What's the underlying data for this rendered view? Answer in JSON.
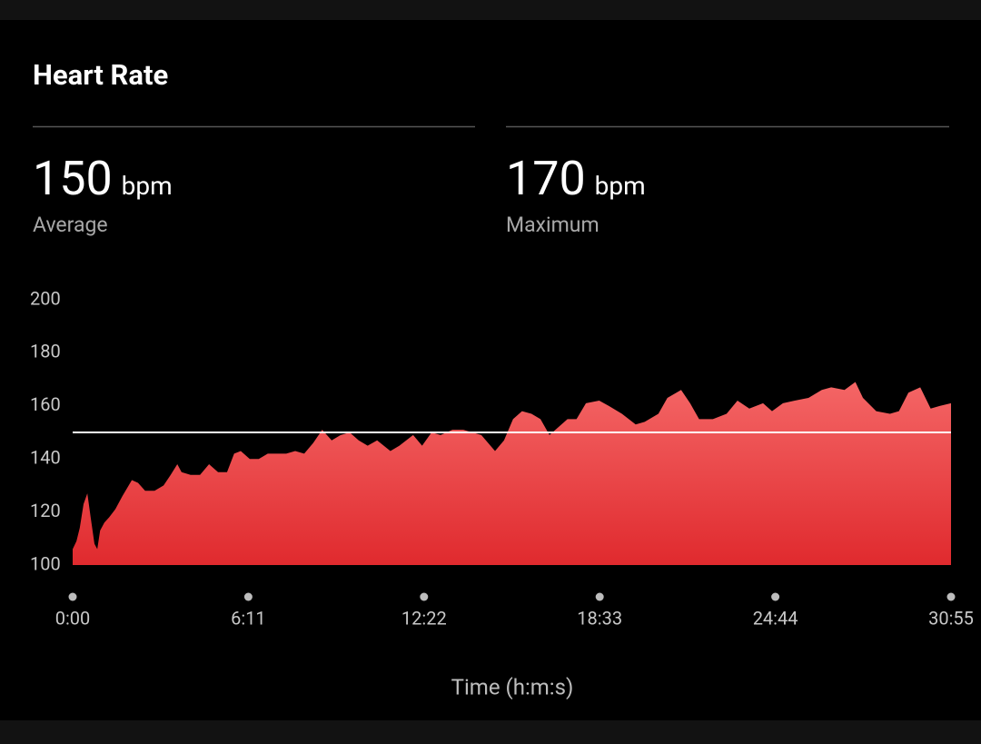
{
  "title": "Heart Rate",
  "stats": [
    {
      "value": 150,
      "unit": "bpm",
      "label": "Average"
    },
    {
      "value": 170,
      "unit": "bpm",
      "label": "Maximum"
    }
  ],
  "chart_data": {
    "type": "area",
    "x_label": "Time (h:m:s)",
    "gradient": [
      "#f46666",
      "#e02a2e"
    ],
    "reference_color": "#ffffff",
    "xlim": [
      0,
      1855
    ],
    "xticks": [
      {
        "value": 0,
        "label": "0:00"
      },
      {
        "value": 371,
        "label": "6:11"
      },
      {
        "value": 742,
        "label": "12:22"
      },
      {
        "value": 1113,
        "label": "18:33"
      },
      {
        "value": 1484,
        "label": "24:44"
      },
      {
        "value": 1855,
        "label": "30:55"
      }
    ],
    "ylim": [
      100,
      200
    ],
    "yticks": [
      100,
      120,
      140,
      160,
      180,
      200
    ],
    "x": [
      0,
      8,
      15,
      23,
      31,
      38,
      46,
      52,
      58,
      67,
      77,
      90,
      105,
      125,
      138,
      153,
      173,
      192,
      207,
      221,
      230,
      249,
      269,
      288,
      307,
      326,
      341,
      355,
      374,
      393,
      412,
      432,
      451,
      470,
      489,
      508,
      527,
      547,
      566,
      585,
      604,
      623,
      643,
      671,
      690,
      719,
      738,
      758,
      777,
      802,
      825,
      844,
      863,
      892,
      911,
      930,
      949,
      969,
      988,
      1007,
      1026,
      1045,
      1064,
      1084,
      1112,
      1132,
      1160,
      1189,
      1208,
      1237,
      1256,
      1285,
      1304,
      1323,
      1352,
      1381,
      1404,
      1429,
      1458,
      1477,
      1500,
      1525,
      1554,
      1582,
      1602,
      1630,
      1653,
      1669,
      1697,
      1726,
      1745,
      1765,
      1790,
      1812,
      1832,
      1855
    ],
    "values": [
      106,
      109,
      114,
      123,
      127,
      118,
      108,
      106,
      113,
      116,
      118,
      121,
      126,
      132,
      131,
      128,
      128,
      130,
      134,
      138,
      135,
      134,
      134,
      138,
      135,
      135,
      142,
      143,
      140,
      140,
      142,
      142,
      142,
      143,
      142,
      146,
      151,
      147,
      149,
      150,
      147,
      145,
      147,
      143,
      145,
      149,
      145,
      150,
      149,
      151,
      151,
      150,
      149,
      143,
      147,
      155,
      158,
      157,
      155,
      149,
      152,
      155,
      155,
      161,
      162,
      160,
      157,
      153,
      154,
      157,
      163,
      166,
      161,
      155,
      155,
      157,
      162,
      159,
      161,
      158,
      161,
      162,
      163,
      166,
      167,
      166,
      169,
      163,
      158,
      157,
      158,
      165,
      167,
      159,
      160,
      161
    ]
  }
}
